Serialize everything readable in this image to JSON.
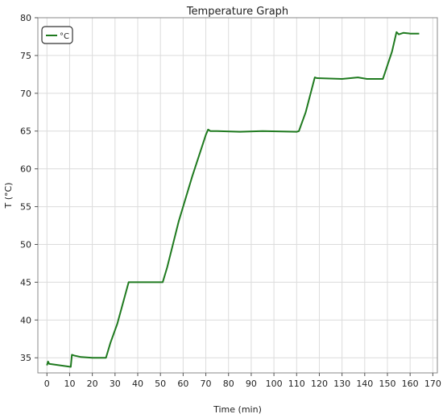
{
  "chart_data": {
    "type": "line",
    "title": "Temperature Graph",
    "xlabel": "Time (min)",
    "ylabel": "T (°C)",
    "xlim": [
      -4,
      172
    ],
    "ylim": [
      33,
      80
    ],
    "x_ticks": [
      0,
      10,
      20,
      30,
      40,
      50,
      60,
      70,
      80,
      90,
      100,
      110,
      120,
      130,
      140,
      150,
      160,
      170
    ],
    "y_ticks": [
      35,
      40,
      45,
      50,
      55,
      60,
      65,
      70,
      75,
      80
    ],
    "grid": true,
    "legend_position": "top-left",
    "series": [
      {
        "name": "°C",
        "color": "#1f7a1f",
        "x": [
          0,
          0.5,
          1,
          10.5,
          11,
          12,
          15,
          20,
          26,
          28,
          31,
          36,
          51,
          53,
          58,
          64,
          70,
          71,
          72,
          75,
          85,
          95,
          110,
          111,
          114,
          118,
          119,
          130,
          137,
          141,
          148,
          149,
          152,
          154,
          155,
          157,
          160,
          164
        ],
        "y": [
          34.0,
          34.5,
          34.2,
          33.8,
          35.4,
          35.3,
          35.1,
          35.0,
          35.0,
          37.0,
          39.5,
          45.0,
          45.0,
          47.0,
          53.0,
          59.0,
          64.5,
          65.2,
          65.0,
          65.0,
          64.9,
          65.0,
          64.9,
          65.0,
          67.5,
          72.1,
          72.0,
          71.9,
          72.1,
          71.9,
          71.9,
          72.8,
          75.5,
          78.1,
          77.8,
          78.0,
          77.9,
          77.9
        ]
      }
    ]
  }
}
